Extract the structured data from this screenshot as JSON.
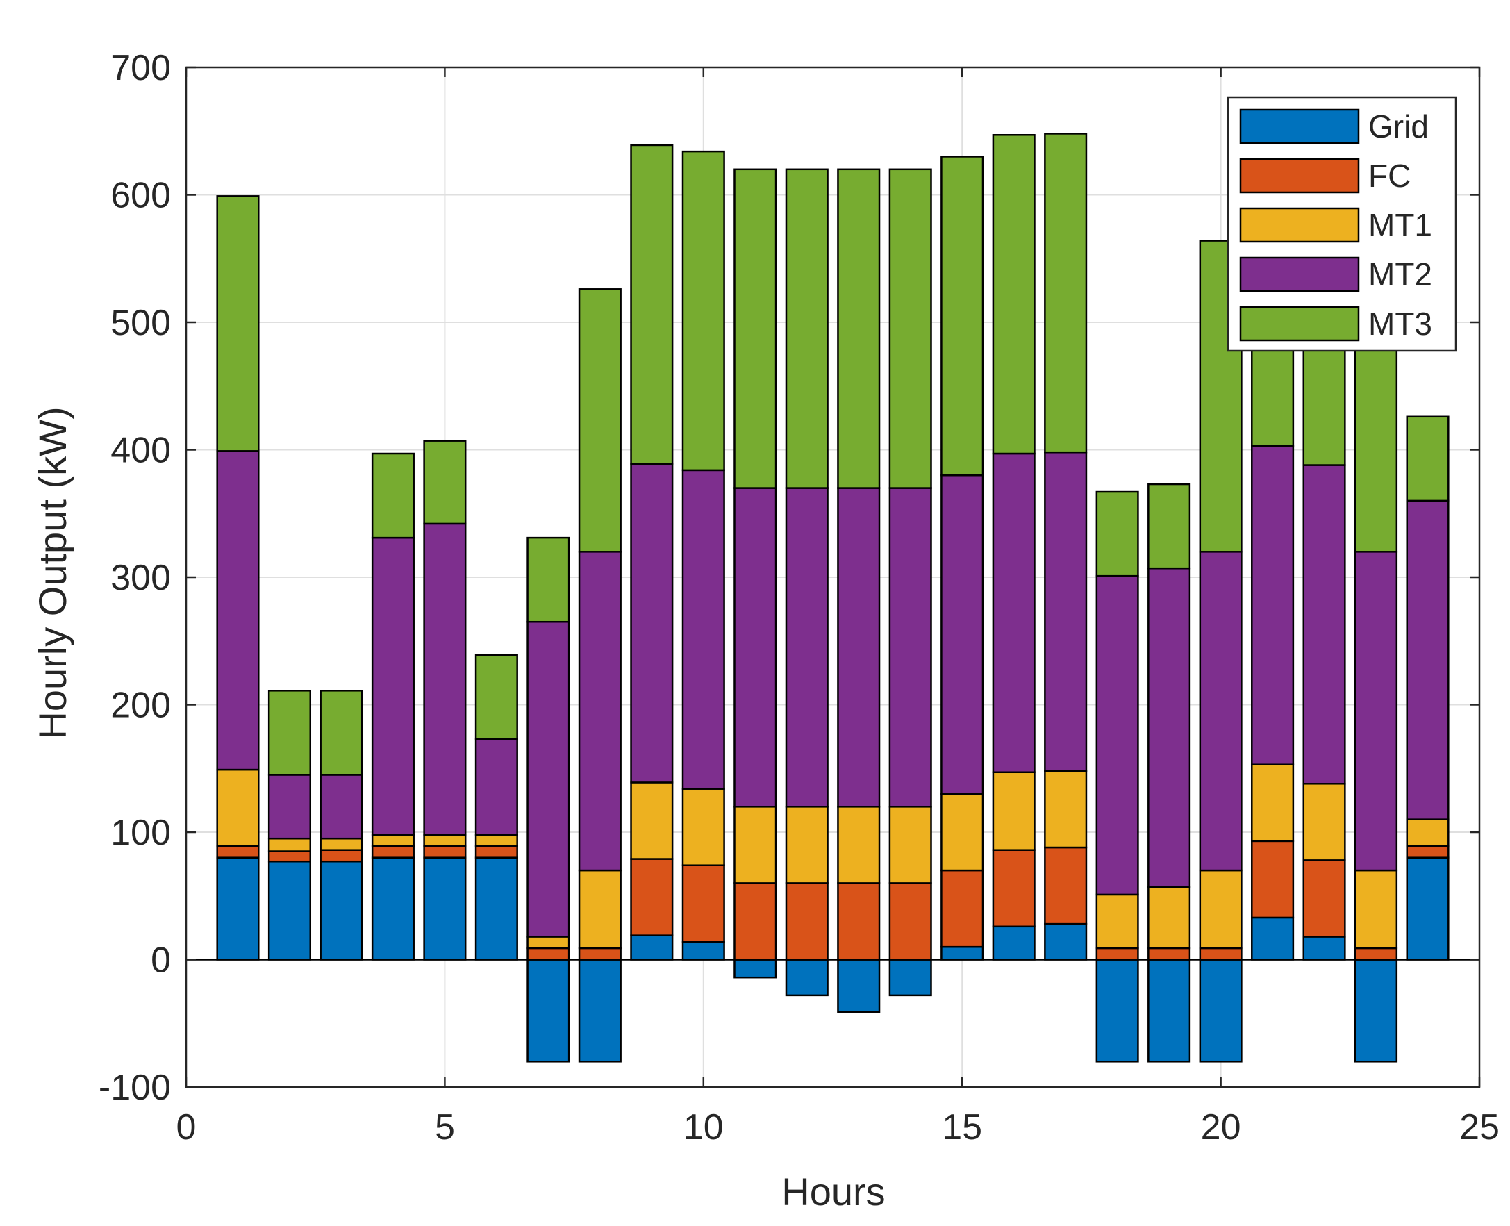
{
  "chart_data": {
    "type": "bar",
    "stacked": true,
    "title": "",
    "xlabel": "Hours",
    "ylabel": "Hourly Output (kW)",
    "xlim": [
      0,
      25
    ],
    "ylim": [
      -100,
      700
    ],
    "xticks": [
      0,
      5,
      10,
      15,
      20,
      25
    ],
    "yticks": [
      -100,
      0,
      100,
      200,
      300,
      400,
      500,
      600,
      700
    ],
    "grid": true,
    "legend_position": "top-right",
    "x": [
      1,
      2,
      3,
      4,
      5,
      6,
      7,
      8,
      9,
      10,
      11,
      12,
      13,
      14,
      15,
      16,
      17,
      18,
      19,
      20,
      21,
      22,
      23,
      24
    ],
    "series": [
      {
        "name": "Grid",
        "color": "#0072BD",
        "values": [
          80,
          77,
          77,
          80,
          80,
          80,
          -80,
          -80,
          19,
          14,
          -14,
          -28,
          -41,
          -28,
          10,
          26,
          28,
          -80,
          -80,
          -80,
          33,
          18,
          -80,
          80
        ]
      },
      {
        "name": "FC",
        "color": "#D95319",
        "values": [
          9,
          8,
          9,
          9,
          9,
          9,
          9,
          9,
          60,
          60,
          60,
          60,
          60,
          60,
          60,
          60,
          60,
          9,
          9,
          9,
          60,
          60,
          9,
          9
        ]
      },
      {
        "name": "MT1",
        "color": "#EDB120",
        "values": [
          60,
          10,
          9,
          9,
          9,
          9,
          9,
          61,
          60,
          60,
          60,
          60,
          60,
          60,
          60,
          61,
          60,
          42,
          48,
          61,
          60,
          60,
          61,
          21
        ]
      },
      {
        "name": "MT2",
        "color": "#7E2F8E",
        "values": [
          250,
          50,
          50,
          233,
          244,
          75,
          247,
          250,
          250,
          250,
          250,
          250,
          250,
          250,
          250,
          250,
          250,
          250,
          250,
          250,
          250,
          250,
          250,
          250
        ]
      },
      {
        "name": "MT3",
        "color": "#77AC30",
        "values": [
          200,
          66,
          66,
          66,
          65,
          66,
          66,
          206,
          250,
          250,
          250,
          250,
          250,
          250,
          250,
          250,
          250,
          66,
          66,
          244,
          250,
          250,
          250,
          66
        ]
      }
    ]
  }
}
